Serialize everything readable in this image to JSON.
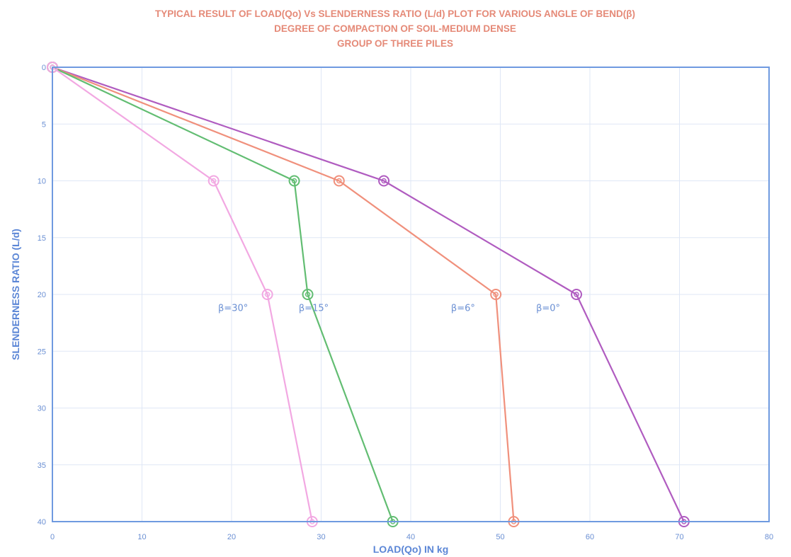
{
  "colors": {
    "title": "#e58a78",
    "axis": "#5b86d6",
    "tick": "#6a8fd3",
    "grid": "#dfe7f6",
    "frame": "#6f9ae0"
  },
  "chart_data": {
    "type": "line",
    "title": [
      "TYPICAL RESULT OF LOAD(Qo) Vs SLENDERNESS RATIO (L/d) PLOT FOR VARIOUS ANGLE OF BEND(β)",
      "DEGREE OF COMPACTION OF SOIL-MEDIUM DENSE",
      "GROUP OF THREE PILES"
    ],
    "xlabel": "LOAD(Qo) IN kg",
    "ylabel": "SLENDERNESS RATIO (L/d)",
    "xlim": [
      0,
      80
    ],
    "ylim": [
      0,
      40
    ],
    "y_inverted": true,
    "x_ticks": [
      0,
      10,
      20,
      30,
      40,
      50,
      60,
      70,
      80
    ],
    "y_ticks": [
      0,
      5,
      10,
      15,
      20,
      25,
      30,
      35,
      40
    ],
    "grid": true,
    "series": [
      {
        "name": "β=0°",
        "color": "#b05cc0",
        "x": [
          0,
          37,
          58.5,
          70.5
        ],
        "y": [
          0,
          10,
          20,
          40
        ],
        "label_at": [
          54,
          21.2
        ]
      },
      {
        "name": "β=6°",
        "color": "#f0907c",
        "x": [
          0,
          32,
          49.5,
          51.5
        ],
        "y": [
          0,
          10,
          20,
          40
        ],
        "label_at": [
          44.5,
          21.2
        ]
      },
      {
        "name": "β=15°",
        "color": "#62bd72",
        "x": [
          0,
          27,
          28.5,
          38
        ],
        "y": [
          0,
          10,
          20,
          40
        ],
        "label_at": [
          27.5,
          21.2
        ]
      },
      {
        "name": "β=30°",
        "color": "#f2a8e2",
        "x": [
          0,
          18,
          24,
          29
        ],
        "y": [
          0,
          10,
          20,
          40
        ],
        "label_at": [
          18.5,
          21.2
        ]
      }
    ]
  }
}
